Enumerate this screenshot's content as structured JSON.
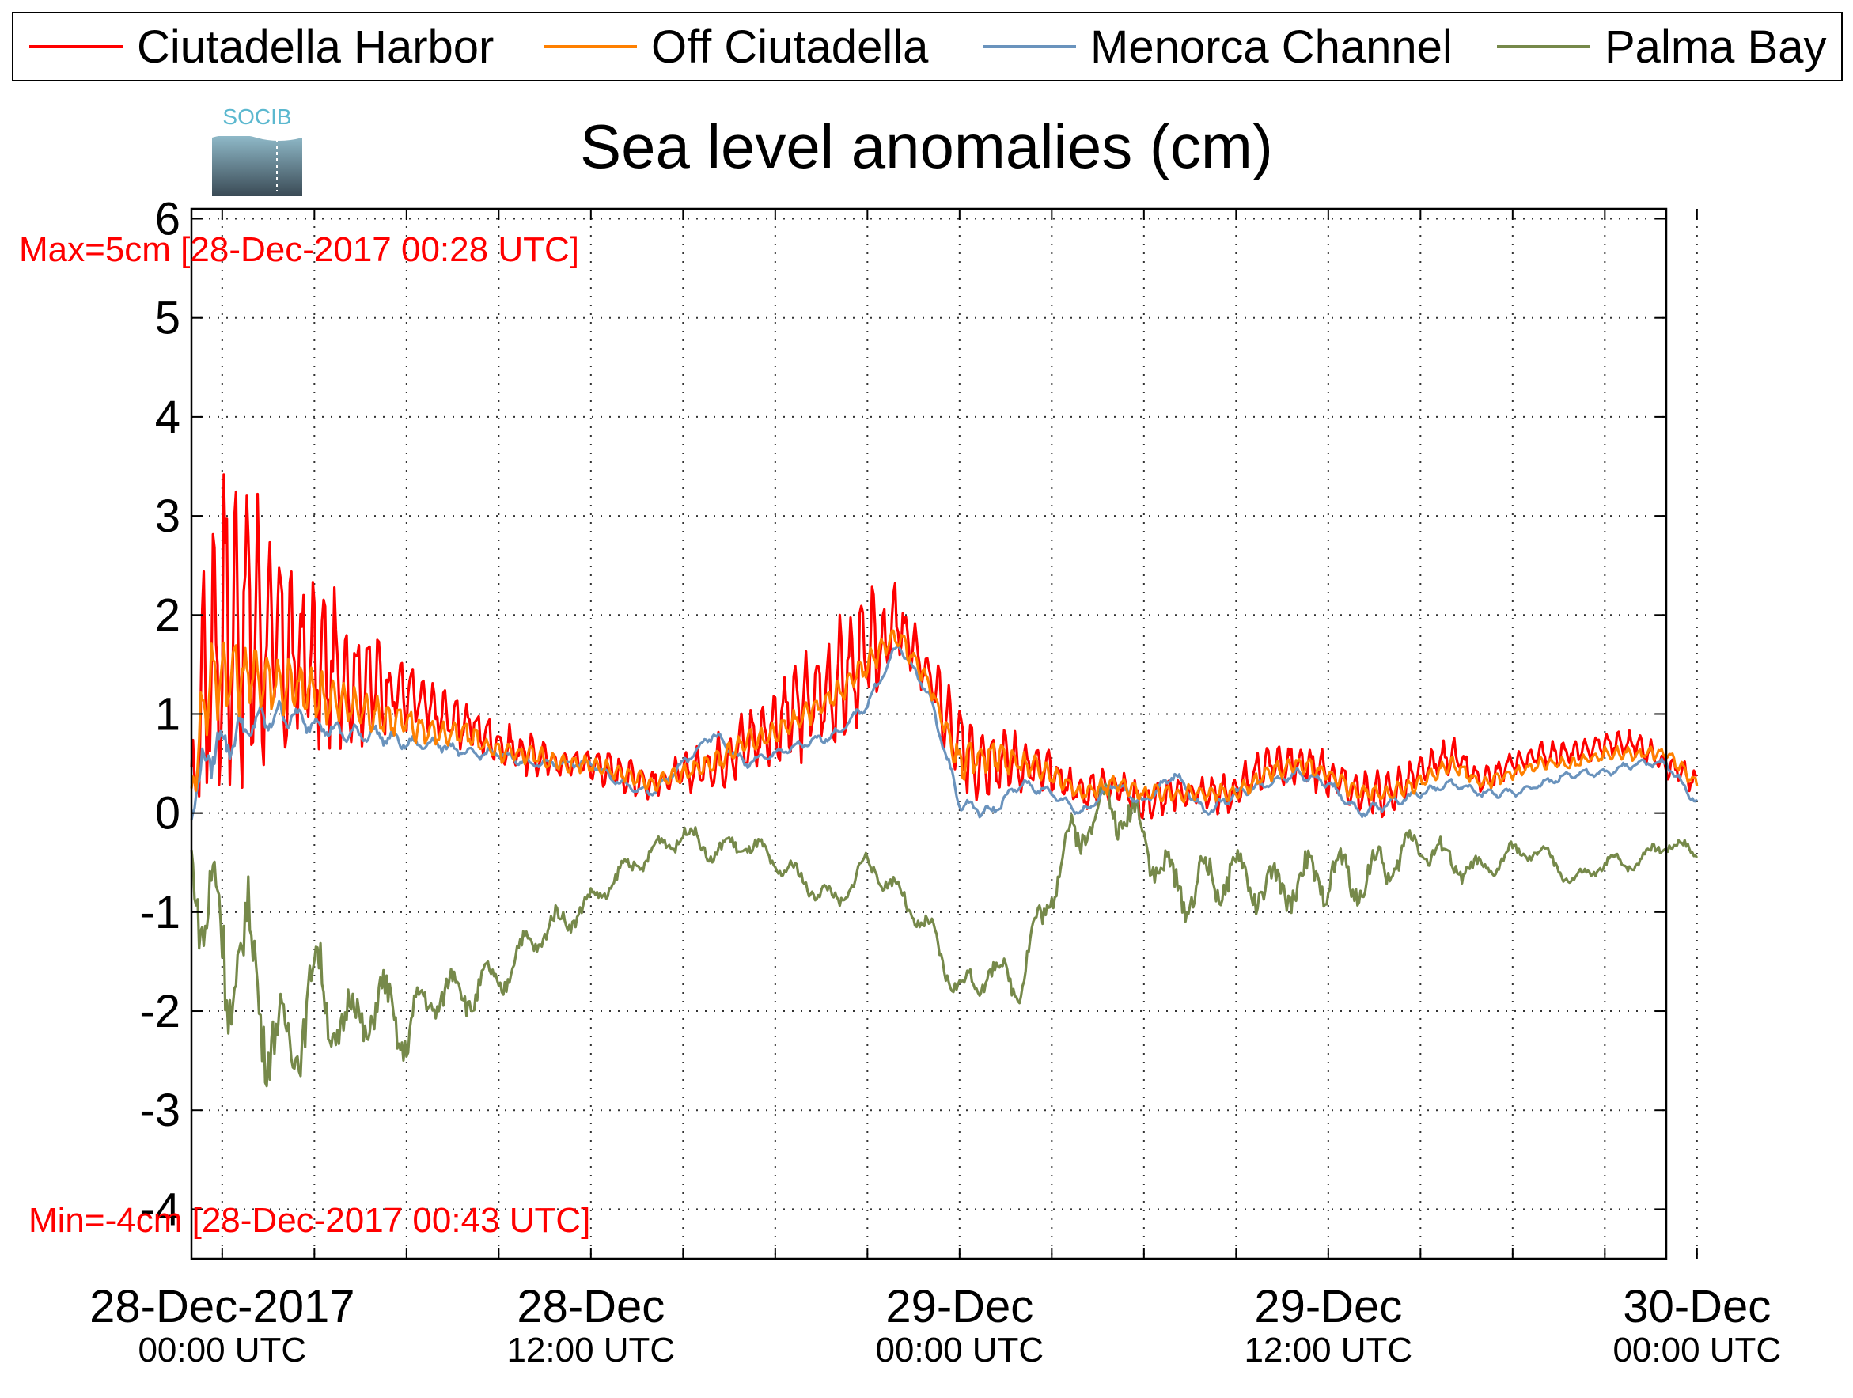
{
  "legend": {
    "items": [
      {
        "label": "Ciutadella Harbor",
        "color": "#ff0000"
      },
      {
        "label": "Off Ciutadella",
        "color": "#ff8000"
      },
      {
        "label": "Menorca Channel",
        "color": "#6a93bd"
      },
      {
        "label": "Palma Bay",
        "color": "#76894a"
      }
    ]
  },
  "logo": {
    "text": "SOCIB"
  },
  "chart_data": {
    "type": "line",
    "title": "Sea level anomalies (cm)",
    "xlabel": "",
    "ylabel": "",
    "ylim": [
      -4.5,
      6.1
    ],
    "xlim_hours": [
      -1,
      47
    ],
    "grid": true,
    "legend_position": "top",
    "y_ticks": [
      -4,
      -3,
      -2,
      -1,
      0,
      1,
      2,
      3,
      4,
      5,
      6
    ],
    "y_tick_labels": [
      "-4",
      "-3",
      "-2",
      "-1",
      "0",
      "1",
      "2",
      "3",
      "4",
      "5",
      "6"
    ],
    "x_major_ticks": [
      {
        "x": "28-Dec-2017 00:00",
        "line1": "28-Dec-2017",
        "line2": "00:00 UTC"
      },
      {
        "x": "28-Dec-2017 12:00",
        "line1": "28-Dec",
        "line2": "12:00 UTC"
      },
      {
        "x": "29-Dec-2017 00:00",
        "line1": "29-Dec",
        "line2": "00:00 UTC"
      },
      {
        "x": "29-Dec-2017 12:00",
        "line1": "29-Dec",
        "line2": "12:00 UTC"
      },
      {
        "x": "30-Dec-2017 00:00",
        "line1": "30-Dec",
        "line2": "00:00 UTC"
      }
    ],
    "x_minor_ticks": [
      "28-Dec-2017 03:00",
      "28-Dec-2017 06:00",
      "28-Dec-2017 09:00",
      "28-Dec-2017 15:00",
      "28-Dec-2017 18:00",
      "28-Dec-2017 21:00",
      "29-Dec-2017 03:00",
      "29-Dec-2017 06:00",
      "29-Dec-2017 09:00",
      "29-Dec-2017 15:00",
      "29-Dec-2017 18:00",
      "29-Dec-2017 21:00"
    ],
    "annotations": {
      "max": {
        "text": "Max=5cm [28-Dec-2017 00:28 UTC]",
        "color": "#ff0000"
      },
      "min": {
        "text": "Min=-4cm [28-Dec-2017 00:43 UTC]",
        "color": "#ff0000"
      }
    },
    "series": [
      {
        "name": "Ciutadella Harbor",
        "color": "#ff0000",
        "x": [
          "27-Dec-2017 23:00",
          "27-Dec-2017 23:30",
          "28-Dec-2017 00:00",
          "28-Dec-2017 01:00",
          "28-Dec-2017 02:00",
          "28-Dec-2017 03:00",
          "28-Dec-2017 04:00",
          "28-Dec-2017 05:00",
          "28-Dec-2017 06:00",
          "28-Dec-2017 07:00",
          "28-Dec-2017 08:00",
          "28-Dec-2017 09:00",
          "28-Dec-2017 10:00",
          "28-Dec-2017 11:00",
          "28-Dec-2017 12:00",
          "28-Dec-2017 13:00",
          "28-Dec-2017 14:00",
          "28-Dec-2017 15:00",
          "28-Dec-2017 16:00",
          "28-Dec-2017 17:00",
          "28-Dec-2017 18:00",
          "28-Dec-2017 19:00",
          "28-Dec-2017 20:00",
          "28-Dec-2017 21:00",
          "28-Dec-2017 22:00",
          "28-Dec-2017 23:00",
          "29-Dec-2017 00:00",
          "29-Dec-2017 01:00",
          "29-Dec-2017 02:00",
          "29-Dec-2017 03:00",
          "29-Dec-2017 04:00",
          "29-Dec-2017 05:00",
          "29-Dec-2017 06:00",
          "29-Dec-2017 07:00",
          "29-Dec-2017 08:00",
          "29-Dec-2017 09:00",
          "29-Dec-2017 10:00",
          "29-Dec-2017 11:00",
          "29-Dec-2017 12:00",
          "29-Dec-2017 13:00",
          "29-Dec-2017 14:00",
          "29-Dec-2017 15:00",
          "29-Dec-2017 16:00",
          "29-Dec-2017 17:00",
          "29-Dec-2017 18:00",
          "29-Dec-2017 19:00",
          "29-Dec-2017 20:00",
          "29-Dec-2017 21:00",
          "29-Dec-2017 22:00",
          "29-Dec-2017 23:00",
          "30-Dec-2017 00:00"
        ],
        "y": [
          0.2,
          1.6,
          1.9,
          1.9,
          1.6,
          1.5,
          1.4,
          1.3,
          1.2,
          1.0,
          0.9,
          0.7,
          0.6,
          0.5,
          0.5,
          0.4,
          0.3,
          0.4,
          0.5,
          0.7,
          0.9,
          1.1,
          1.3,
          1.6,
          1.9,
          1.4,
          0.6,
          0.6,
          0.5,
          0.4,
          0.2,
          0.3,
          0.1,
          0.2,
          0.2,
          0.2,
          0.5,
          0.5,
          0.4,
          0.2,
          0.2,
          0.4,
          0.6,
          0.3,
          0.5,
          0.6,
          0.6,
          0.7,
          0.7,
          0.5,
          0.3
        ],
        "amp": [
          0.3,
          2.0,
          2.0,
          1.7,
          1.2,
          1.0,
          0.8,
          0.6,
          0.4,
          0.35,
          0.3,
          0.25,
          0.25,
          0.2,
          0.2,
          0.2,
          0.2,
          0.2,
          0.3,
          0.4,
          0.5,
          0.6,
          0.7,
          0.7,
          0.5,
          0.3,
          0.6,
          0.5,
          0.3,
          0.25,
          0.2,
          0.2,
          0.2,
          0.2,
          0.2,
          0.25,
          0.25,
          0.25,
          0.25,
          0.25,
          0.25,
          0.2,
          0.2,
          0.15,
          0.15,
          0.15,
          0.15,
          0.15,
          0.15,
          0.15,
          0.15
        ]
      },
      {
        "name": "Off Ciutadella",
        "color": "#ff8000",
        "x": [
          "27-Dec-2017 23:00",
          "27-Dec-2017 23:30",
          "28-Dec-2017 00:00",
          "28-Dec-2017 01:00",
          "28-Dec-2017 02:00",
          "28-Dec-2017 03:00",
          "28-Dec-2017 04:00",
          "28-Dec-2017 05:00",
          "28-Dec-2017 06:00",
          "28-Dec-2017 07:00",
          "28-Dec-2017 08:00",
          "28-Dec-2017 09:00",
          "28-Dec-2017 10:00",
          "28-Dec-2017 11:00",
          "28-Dec-2017 12:00",
          "28-Dec-2017 13:00",
          "28-Dec-2017 14:00",
          "28-Dec-2017 15:00",
          "28-Dec-2017 16:00",
          "28-Dec-2017 17:00",
          "28-Dec-2017 18:00",
          "28-Dec-2017 19:00",
          "28-Dec-2017 20:00",
          "28-Dec-2017 21:00",
          "28-Dec-2017 22:00",
          "28-Dec-2017 23:00",
          "29-Dec-2017 00:00",
          "29-Dec-2017 01:00",
          "29-Dec-2017 02:00",
          "29-Dec-2017 03:00",
          "29-Dec-2017 04:00",
          "29-Dec-2017 05:00",
          "29-Dec-2017 06:00",
          "29-Dec-2017 07:00",
          "29-Dec-2017 08:00",
          "29-Dec-2017 09:00",
          "29-Dec-2017 10:00",
          "29-Dec-2017 11:00",
          "29-Dec-2017 12:00",
          "29-Dec-2017 13:00",
          "29-Dec-2017 14:00",
          "29-Dec-2017 15:00",
          "29-Dec-2017 16:00",
          "29-Dec-2017 17:00",
          "29-Dec-2017 18:00",
          "29-Dec-2017 19:00",
          "29-Dec-2017 20:00",
          "29-Dec-2017 21:00",
          "29-Dec-2017 22:00",
          "29-Dec-2017 23:00",
          "30-Dec-2017 00:00"
        ],
        "y": [
          0.2,
          1.3,
          1.4,
          1.4,
          1.3,
          1.2,
          1.1,
          1.0,
          0.9,
          0.8,
          0.8,
          0.6,
          0.6,
          0.5,
          0.5,
          0.4,
          0.3,
          0.4,
          0.5,
          0.7,
          0.8,
          1.0,
          1.2,
          1.5,
          1.8,
          1.3,
          0.5,
          0.6,
          0.5,
          0.4,
          0.2,
          0.3,
          0.2,
          0.2,
          0.2,
          0.2,
          0.4,
          0.5,
          0.4,
          0.2,
          0.2,
          0.3,
          0.5,
          0.3,
          0.4,
          0.5,
          0.5,
          0.6,
          0.6,
          0.6,
          0.3
        ],
        "amp": [
          0.2,
          0.6,
          0.5,
          0.4,
          0.35,
          0.3,
          0.25,
          0.2,
          0.2,
          0.15,
          0.15,
          0.12,
          0.12,
          0.1,
          0.1,
          0.1,
          0.1,
          0.1,
          0.12,
          0.15,
          0.15,
          0.15,
          0.15,
          0.15,
          0.12,
          0.1,
          0.2,
          0.2,
          0.15,
          0.12,
          0.1,
          0.1,
          0.1,
          0.1,
          0.1,
          0.1,
          0.1,
          0.1,
          0.1,
          0.1,
          0.1,
          0.1,
          0.1,
          0.08,
          0.08,
          0.08,
          0.08,
          0.08,
          0.08,
          0.08,
          0.08
        ]
      },
      {
        "name": "Menorca Channel",
        "color": "#6a93bd",
        "x": [
          "27-Dec-2017 23:00",
          "27-Dec-2017 23:30",
          "28-Dec-2017 00:00",
          "28-Dec-2017 01:00",
          "28-Dec-2017 02:00",
          "28-Dec-2017 03:00",
          "28-Dec-2017 04:00",
          "28-Dec-2017 05:00",
          "28-Dec-2017 06:00",
          "28-Dec-2017 07:00",
          "28-Dec-2017 08:00",
          "28-Dec-2017 09:00",
          "28-Dec-2017 10:00",
          "28-Dec-2017 11:00",
          "28-Dec-2017 12:00",
          "28-Dec-2017 13:00",
          "28-Dec-2017 14:00",
          "28-Dec-2017 15:00",
          "28-Dec-2017 16:00",
          "28-Dec-2017 17:00",
          "28-Dec-2017 18:00",
          "28-Dec-2017 19:00",
          "28-Dec-2017 20:00",
          "28-Dec-2017 21:00",
          "28-Dec-2017 22:00",
          "28-Dec-2017 23:00",
          "29-Dec-2017 00:00",
          "29-Dec-2017 01:00",
          "29-Dec-2017 02:00",
          "29-Dec-2017 03:00",
          "29-Dec-2017 04:00",
          "29-Dec-2017 05:00",
          "29-Dec-2017 06:00",
          "29-Dec-2017 07:00",
          "29-Dec-2017 08:00",
          "29-Dec-2017 09:00",
          "29-Dec-2017 10:00",
          "29-Dec-2017 11:00",
          "29-Dec-2017 12:00",
          "29-Dec-2017 13:00",
          "29-Dec-2017 14:00",
          "29-Dec-2017 15:00",
          "29-Dec-2017 16:00",
          "29-Dec-2017 17:00",
          "29-Dec-2017 18:00",
          "29-Dec-2017 19:00",
          "29-Dec-2017 20:00",
          "29-Dec-2017 21:00",
          "29-Dec-2017 22:00",
          "29-Dec-2017 23:00",
          "30-Dec-2017 00:00"
        ],
        "y": [
          0.0,
          0.6,
          0.7,
          0.9,
          1.0,
          0.9,
          0.8,
          0.8,
          0.7,
          0.7,
          0.6,
          0.6,
          0.5,
          0.5,
          0.5,
          0.3,
          0.2,
          0.5,
          0.8,
          0.5,
          0.6,
          0.7,
          0.8,
          1.1,
          1.7,
          1.2,
          0.1,
          0.0,
          0.3,
          0.2,
          0.0,
          0.3,
          0.1,
          0.4,
          0.0,
          0.2,
          0.3,
          0.4,
          0.3,
          0.0,
          0.1,
          0.2,
          0.3,
          0.2,
          0.2,
          0.3,
          0.4,
          0.4,
          0.5,
          0.5,
          0.1
        ],
        "amp": [
          0.1,
          0.3,
          0.25,
          0.2,
          0.15,
          0.12,
          0.1,
          0.1,
          0.08,
          0.08,
          0.06,
          0.06,
          0.05,
          0.05,
          0.05,
          0.05,
          0.05,
          0.06,
          0.06,
          0.06,
          0.06,
          0.06,
          0.06,
          0.06,
          0.06,
          0.05,
          0.08,
          0.08,
          0.06,
          0.06,
          0.06,
          0.06,
          0.06,
          0.06,
          0.06,
          0.06,
          0.06,
          0.06,
          0.06,
          0.06,
          0.06,
          0.05,
          0.05,
          0.05,
          0.05,
          0.05,
          0.05,
          0.05,
          0.05,
          0.05,
          0.05
        ]
      },
      {
        "name": "Palma Bay",
        "color": "#76894a",
        "x": [
          "27-Dec-2017 23:00",
          "27-Dec-2017 23:30",
          "28-Dec-2017 00:00",
          "28-Dec-2017 01:00",
          "28-Dec-2017 02:00",
          "28-Dec-2017 03:00",
          "28-Dec-2017 04:00",
          "28-Dec-2017 05:00",
          "28-Dec-2017 06:00",
          "28-Dec-2017 07:00",
          "28-Dec-2017 08:00",
          "28-Dec-2017 09:00",
          "28-Dec-2017 10:00",
          "28-Dec-2017 11:00",
          "28-Dec-2017 12:00",
          "28-Dec-2017 13:00",
          "28-Dec-2017 14:00",
          "28-Dec-2017 15:00",
          "28-Dec-2017 16:00",
          "28-Dec-2017 17:00",
          "28-Dec-2017 18:00",
          "28-Dec-2017 19:00",
          "28-Dec-2017 20:00",
          "28-Dec-2017 21:00",
          "28-Dec-2017 22:00",
          "28-Dec-2017 23:00",
          "29-Dec-2017 00:00",
          "29-Dec-2017 01:00",
          "29-Dec-2017 02:00",
          "29-Dec-2017 03:00",
          "29-Dec-2017 04:00",
          "29-Dec-2017 05:00",
          "29-Dec-2017 06:00",
          "29-Dec-2017 07:00",
          "29-Dec-2017 08:00",
          "29-Dec-2017 09:00",
          "29-Dec-2017 10:00",
          "29-Dec-2017 11:00",
          "29-Dec-2017 12:00",
          "29-Dec-2017 13:00",
          "29-Dec-2017 14:00",
          "29-Dec-2017 15:00",
          "29-Dec-2017 16:00",
          "29-Dec-2017 17:00",
          "29-Dec-2017 18:00",
          "29-Dec-2017 19:00",
          "29-Dec-2017 20:00",
          "29-Dec-2017 21:00",
          "29-Dec-2017 22:00",
          "29-Dec-2017 23:00",
          "30-Dec-2017 00:00"
        ],
        "y": [
          -0.3,
          -1.2,
          -1.3,
          -1.6,
          -2.5,
          -1.7,
          -2.2,
          -1.9,
          -2.2,
          -1.8,
          -1.8,
          -1.7,
          -1.3,
          -1.1,
          -0.9,
          -0.6,
          -0.4,
          -0.2,
          -0.4,
          -0.3,
          -0.5,
          -0.7,
          -0.9,
          -0.5,
          -0.8,
          -1.2,
          -1.8,
          -1.6,
          -1.7,
          -0.7,
          -0.1,
          0.1,
          -0.2,
          -0.8,
          -0.7,
          -0.6,
          -0.8,
          -0.7,
          -0.6,
          -0.7,
          -0.5,
          -0.3,
          -0.5,
          -0.6,
          -0.4,
          -0.4,
          -0.7,
          -0.5,
          -0.5,
          -0.3,
          -0.4
        ],
        "amp": [
          0.3,
          1.0,
          1.1,
          0.9,
          0.6,
          0.6,
          0.5,
          0.45,
          0.4,
          0.3,
          0.3,
          0.25,
          0.2,
          0.2,
          0.15,
          0.15,
          0.15,
          0.15,
          0.15,
          0.15,
          0.15,
          0.15,
          0.15,
          0.15,
          0.15,
          0.2,
          0.2,
          0.2,
          0.25,
          0.35,
          0.35,
          0.35,
          0.35,
          0.35,
          0.35,
          0.3,
          0.3,
          0.3,
          0.35,
          0.3,
          0.3,
          0.25,
          0.2,
          0.15,
          0.12,
          0.1,
          0.1,
          0.1,
          0.1,
          0.1,
          0.1
        ]
      }
    ]
  }
}
